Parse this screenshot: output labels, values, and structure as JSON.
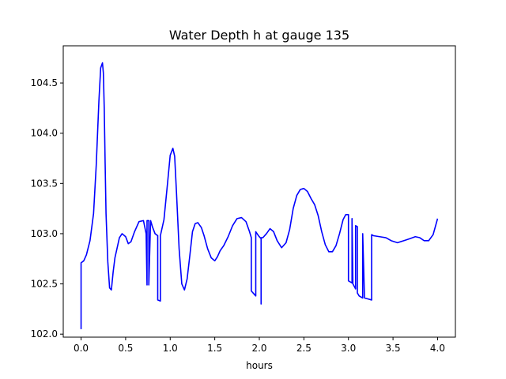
{
  "chart_data": {
    "type": "line",
    "title": "Water Depth h at gauge 135",
    "xlabel": "hours",
    "ylabel": "",
    "xlim": [
      -0.2,
      4.2
    ],
    "ylim": [
      101.97,
      104.87
    ],
    "xticks": [
      0.0,
      0.5,
      1.0,
      1.5,
      2.0,
      2.5,
      3.0,
      3.5,
      4.0
    ],
    "xtick_labels": [
      "0.0",
      "0.5",
      "1.0",
      "1.5",
      "2.0",
      "2.5",
      "3.0",
      "3.5",
      "4.0"
    ],
    "yticks": [
      102.0,
      102.5,
      103.0,
      103.5,
      104.0,
      104.5
    ],
    "ytick_labels": [
      "102.0",
      "102.5",
      "103.0",
      "103.5",
      "104.0",
      "104.5"
    ],
    "grid": false,
    "legend": "none",
    "series": [
      {
        "color": "#0000ff",
        "x": [
          0.0,
          0.0,
          0.03,
          0.06,
          0.1,
          0.14,
          0.17,
          0.2,
          0.22,
          0.24,
          0.25,
          0.26,
          0.27,
          0.28,
          0.3,
          0.32,
          0.34,
          0.36,
          0.38,
          0.4,
          0.43,
          0.46,
          0.5,
          0.53,
          0.56,
          0.6,
          0.65,
          0.7,
          0.73,
          0.74,
          0.74,
          0.76,
          0.76,
          0.78,
          0.8,
          0.83,
          0.86,
          0.86,
          0.89,
          0.89,
          0.93,
          0.97,
          1.0,
          1.03,
          1.05,
          1.07,
          1.1,
          1.13,
          1.16,
          1.19,
          1.22,
          1.25,
          1.28,
          1.31,
          1.35,
          1.38,
          1.42,
          1.46,
          1.5,
          1.53,
          1.56,
          1.6,
          1.65,
          1.7,
          1.75,
          1.8,
          1.85,
          1.89,
          1.91,
          1.91,
          1.96,
          1.96,
          1.99,
          2.02,
          2.02,
          2.02,
          2.04,
          2.08,
          2.12,
          2.16,
          2.2,
          2.25,
          2.3,
          2.34,
          2.38,
          2.42,
          2.46,
          2.5,
          2.54,
          2.58,
          2.62,
          2.66,
          2.7,
          2.74,
          2.78,
          2.82,
          2.86,
          2.9,
          2.94,
          2.97,
          3.0,
          3.0,
          3.04,
          3.04,
          3.05,
          3.08,
          3.08,
          3.1,
          3.1,
          3.12,
          3.16,
          3.16,
          3.18,
          3.22,
          3.26,
          3.26,
          3.28,
          3.35,
          3.42,
          3.48,
          3.55,
          3.62,
          3.69,
          3.75,
          3.8,
          3.85,
          3.9,
          3.95,
          4.0
        ],
        "y": [
          102.05,
          102.71,
          102.73,
          102.79,
          102.93,
          103.2,
          103.68,
          104.32,
          104.65,
          104.7,
          104.6,
          104.25,
          103.7,
          103.2,
          102.72,
          102.46,
          102.44,
          102.62,
          102.76,
          102.84,
          102.96,
          103.0,
          102.97,
          102.9,
          102.92,
          103.02,
          103.12,
          103.13,
          103.0,
          102.49,
          103.13,
          103.13,
          102.49,
          103.13,
          103.07,
          103.0,
          102.98,
          102.34,
          102.33,
          102.98,
          103.14,
          103.5,
          103.78,
          103.85,
          103.77,
          103.42,
          102.85,
          102.5,
          102.44,
          102.55,
          102.78,
          103.02,
          103.1,
          103.11,
          103.06,
          102.98,
          102.85,
          102.76,
          102.73,
          102.77,
          102.83,
          102.88,
          102.97,
          103.08,
          103.15,
          103.16,
          103.12,
          103.02,
          102.96,
          102.43,
          102.38,
          103.02,
          102.98,
          102.95,
          102.3,
          102.96,
          102.96,
          103.0,
          103.05,
          103.02,
          102.93,
          102.86,
          102.91,
          103.04,
          103.25,
          103.38,
          103.44,
          103.45,
          103.42,
          103.35,
          103.29,
          103.18,
          103.02,
          102.89,
          102.82,
          102.82,
          102.88,
          103.0,
          103.14,
          103.19,
          103.19,
          102.53,
          102.51,
          103.15,
          102.5,
          102.45,
          103.08,
          103.07,
          102.41,
          102.38,
          102.36,
          103.0,
          102.36,
          102.35,
          102.34,
          102.99,
          102.98,
          102.97,
          102.96,
          102.93,
          102.91,
          102.93,
          102.95,
          102.97,
          102.96,
          102.93,
          102.93,
          102.99,
          103.15
        ]
      }
    ]
  }
}
